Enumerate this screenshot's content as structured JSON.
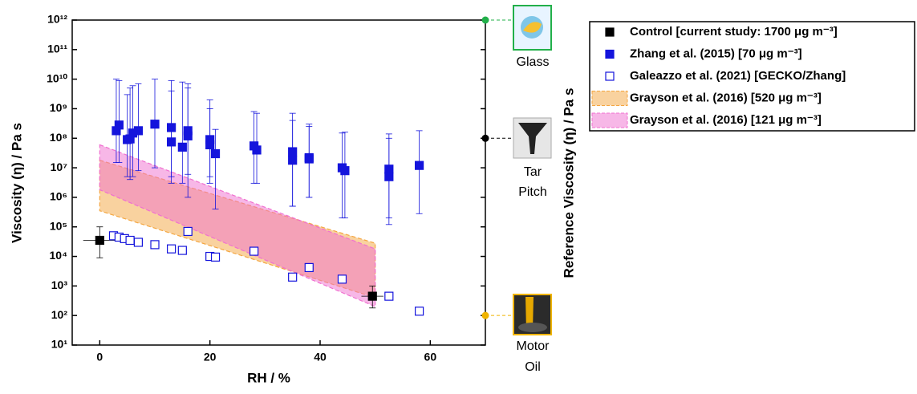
{
  "chart_data": {
    "type": "scatter",
    "xlabel": "RH / %",
    "ylabel": "Viscosity (η) / Pa s",
    "y2label": "Reference Viscosity (η) / Pa s",
    "xlim": [
      -5,
      70
    ],
    "xticks": [
      0,
      20,
      40,
      60
    ],
    "ylim": [
      10,
      1000000000000
    ],
    "log_y": true,
    "yticks": [
      {
        "value": 10,
        "label": "10¹"
      },
      {
        "value": 100,
        "label": "10²"
      },
      {
        "value": 1000,
        "label": "10³"
      },
      {
        "value": 10000,
        "label": "10⁴"
      },
      {
        "value": 100000,
        "label": "10⁵"
      },
      {
        "value": 1000000,
        "label": "10⁶"
      },
      {
        "value": 10000000,
        "label": "10⁷"
      },
      {
        "value": 100000000,
        "label": "10⁸"
      },
      {
        "value": 1000000000,
        "label": "10⁹"
      },
      {
        "value": 10000000000,
        "label": "10¹⁰"
      },
      {
        "value": 100000000000,
        "label": "10¹¹"
      },
      {
        "value": 1000000000000,
        "label": "10¹²"
      }
    ],
    "legend": "outside-right",
    "series": [
      {
        "name": "Control [current study: 1700 μg m⁻³]",
        "kind": "points",
        "marker": "filled",
        "color": "#000000",
        "x": [
          0,
          49.5
        ],
        "values": [
          35000,
          450
        ],
        "y_lower": [
          9000,
          180
        ],
        "y_upper": [
          100000,
          1000
        ],
        "x_lower": [
          -3,
          47.5
        ],
        "x_upper": [
          3,
          51.5
        ]
      },
      {
        "name": "Zhang et al. (2015) [70 μg m⁻³]",
        "kind": "points",
        "marker": "filled",
        "color": "#1414dc",
        "x": [
          3,
          3.5,
          5,
          5.5,
          6,
          7,
          10,
          13,
          13,
          15,
          16,
          16,
          20,
          20,
          21,
          28,
          28.5,
          35,
          35,
          38,
          38,
          44,
          44.5,
          52.5,
          52.5,
          58
        ],
        "values": [
          180000000,
          280000000,
          90000000,
          95000000,
          150000000,
          180000000,
          300000000,
          230000000,
          75000000,
          50000000,
          180000000,
          120000000,
          90000000,
          60000000,
          30000000,
          55000000,
          40000000,
          35000000,
          18000000,
          22000000,
          20000000,
          10000000,
          8000000,
          9000000,
          5000000,
          12000000
        ],
        "y_lower": [
          15000000,
          15000000,
          5000000,
          4000000,
          5000000,
          8000000,
          10000000,
          5000000,
          3000000,
          3000000,
          6000000,
          1000000,
          5000000,
          3000000,
          400000,
          3000000,
          3000000,
          500000,
          500000,
          1000000,
          1000000,
          200000,
          200000,
          200000,
          120000,
          280000
        ],
        "y_upper": [
          10000000000,
          9000000000,
          3000000000,
          5000000000,
          6000000000,
          7000000000,
          10000000000,
          9000000000,
          4000000000,
          8000000000,
          7000000000,
          5000000000,
          2000000000,
          1000000000,
          200000000,
          800000000,
          700000000,
          700000000,
          400000000,
          300000000,
          250000000,
          150000000,
          160000000,
          140000000,
          100000000,
          180000000
        ]
      },
      {
        "name": "Galeazzo et al. (2021) [GECKO/Zhang]",
        "kind": "points",
        "marker": "open",
        "color": "#1414dc",
        "x": [
          2.5,
          3.5,
          4.5,
          5.5,
          7,
          10,
          13,
          15,
          16,
          20,
          21,
          28,
          35,
          38,
          44,
          52.5,
          58
        ],
        "values": [
          50000,
          45000,
          40000,
          35000,
          30000,
          25000,
          18000,
          16000,
          70000,
          10000,
          9500,
          15000,
          2000,
          4200,
          1700,
          450,
          140
        ]
      },
      {
        "name": "Grayson et al. (2016) [520 μg m⁻³]",
        "kind": "band",
        "color": "#f4a640",
        "x": [
          0,
          50
        ],
        "lower": [
          350000,
          400
        ],
        "upper": [
          18000000,
          28000
        ]
      },
      {
        "name": "Grayson et al. (2016) [121 μg m⁻³]",
        "kind": "band",
        "color": "#f070d0",
        "x": [
          0,
          50
        ],
        "lower": [
          1800000,
          200
        ],
        "upper": [
          60000000,
          18000
        ]
      }
    ],
    "references": [
      {
        "lines": [
          "Glass"
        ],
        "value": 1000000000000,
        "color": "#22b04a"
      },
      {
        "lines": [
          "Tar",
          "Pitch"
        ],
        "value": 100000000,
        "color": "#000000"
      },
      {
        "lines": [
          "Motor",
          "Oil"
        ],
        "value": 100,
        "color": "#f0b400"
      }
    ]
  }
}
